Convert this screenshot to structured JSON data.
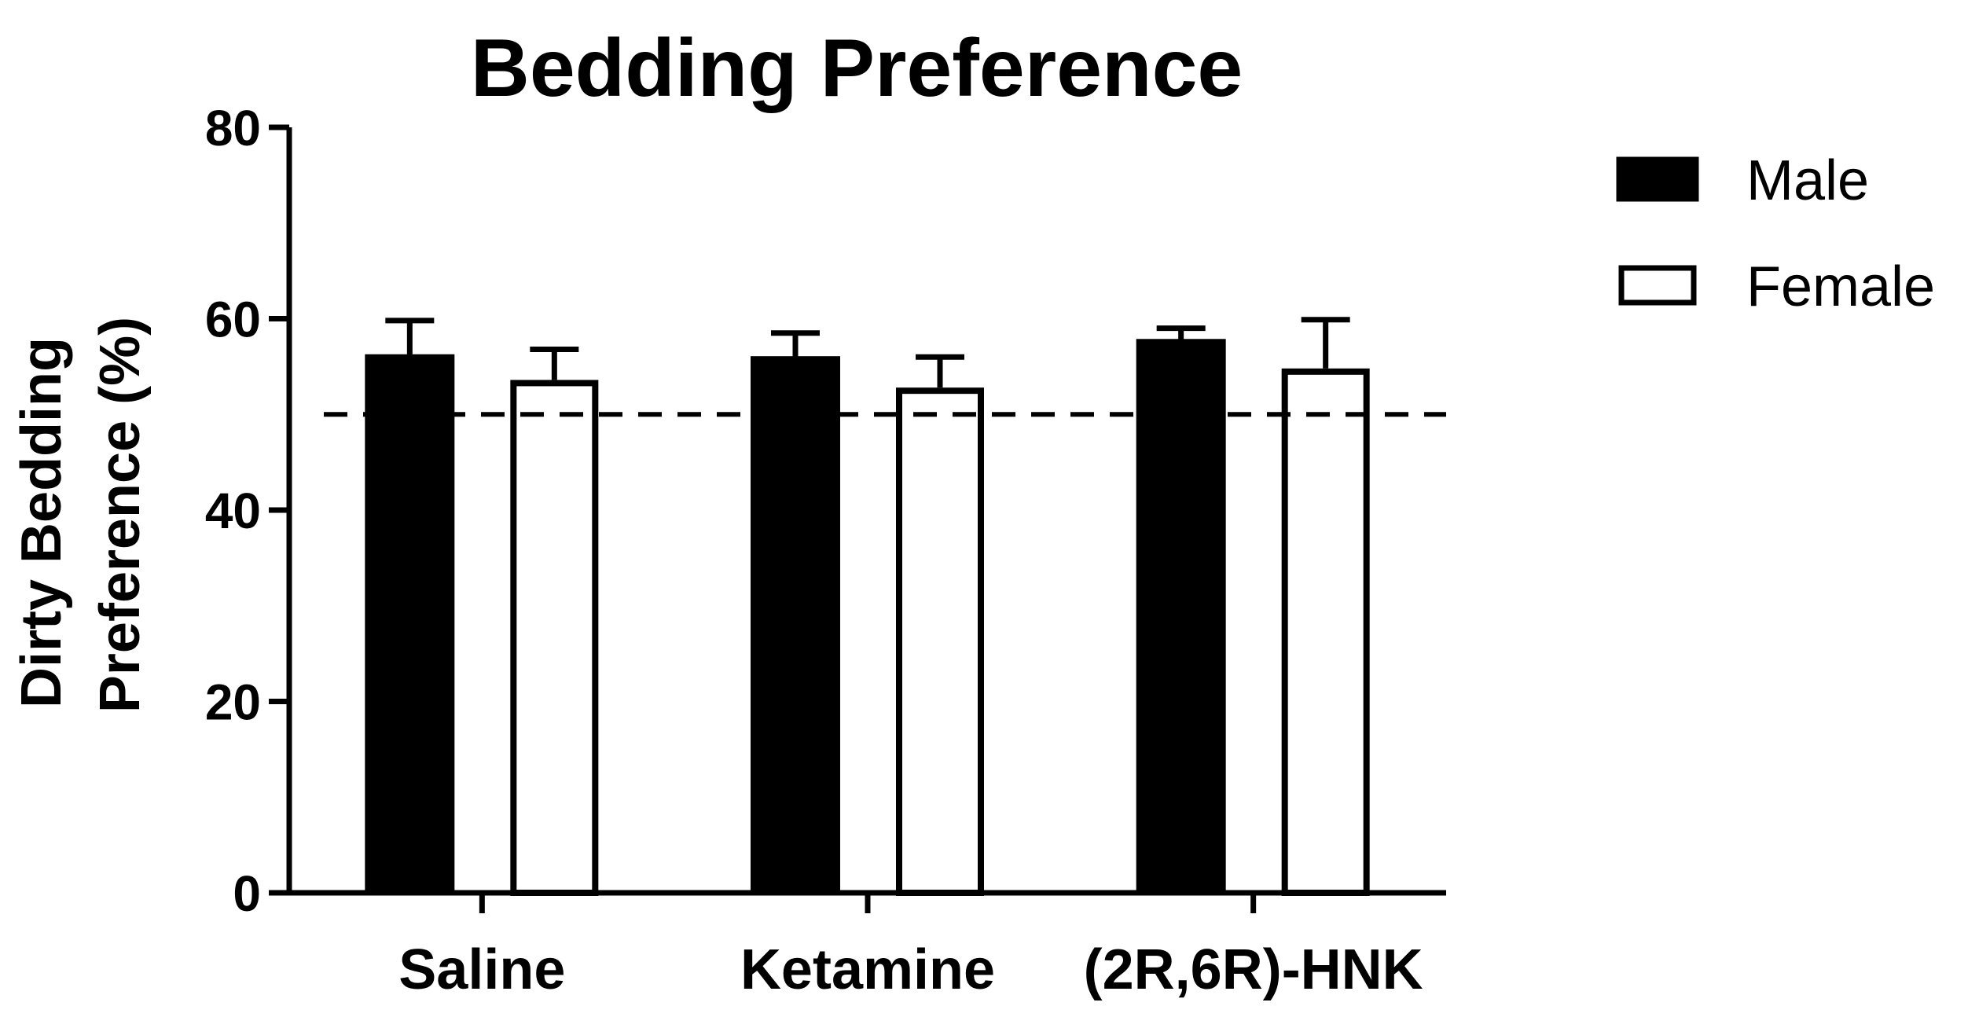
{
  "chart_data": {
    "type": "bar",
    "title": "Bedding Preference",
    "ylabel": "Dirty Bedding Preference (%)",
    "ylabel_lines": [
      "Dirty Bedding",
      "Preference (%)"
    ],
    "xlabel": "",
    "categories": [
      "Saline",
      "Ketamine",
      "(2R,6R)-HNK"
    ],
    "series": [
      {
        "name": "Male",
        "values": [
          56.2,
          56.0,
          57.8
        ],
        "errors": [
          3.6,
          2.5,
          1.2
        ],
        "fill": "#000000"
      },
      {
        "name": "Female",
        "values": [
          53.6,
          52.8,
          54.8
        ],
        "errors": [
          3.2,
          3.2,
          5.1
        ],
        "fill": "#ffffff"
      }
    ],
    "ylim": [
      0,
      80
    ],
    "yticks": [
      0,
      20,
      40,
      60,
      80
    ],
    "reference_line": 50,
    "grid": false,
    "legend": "right"
  }
}
